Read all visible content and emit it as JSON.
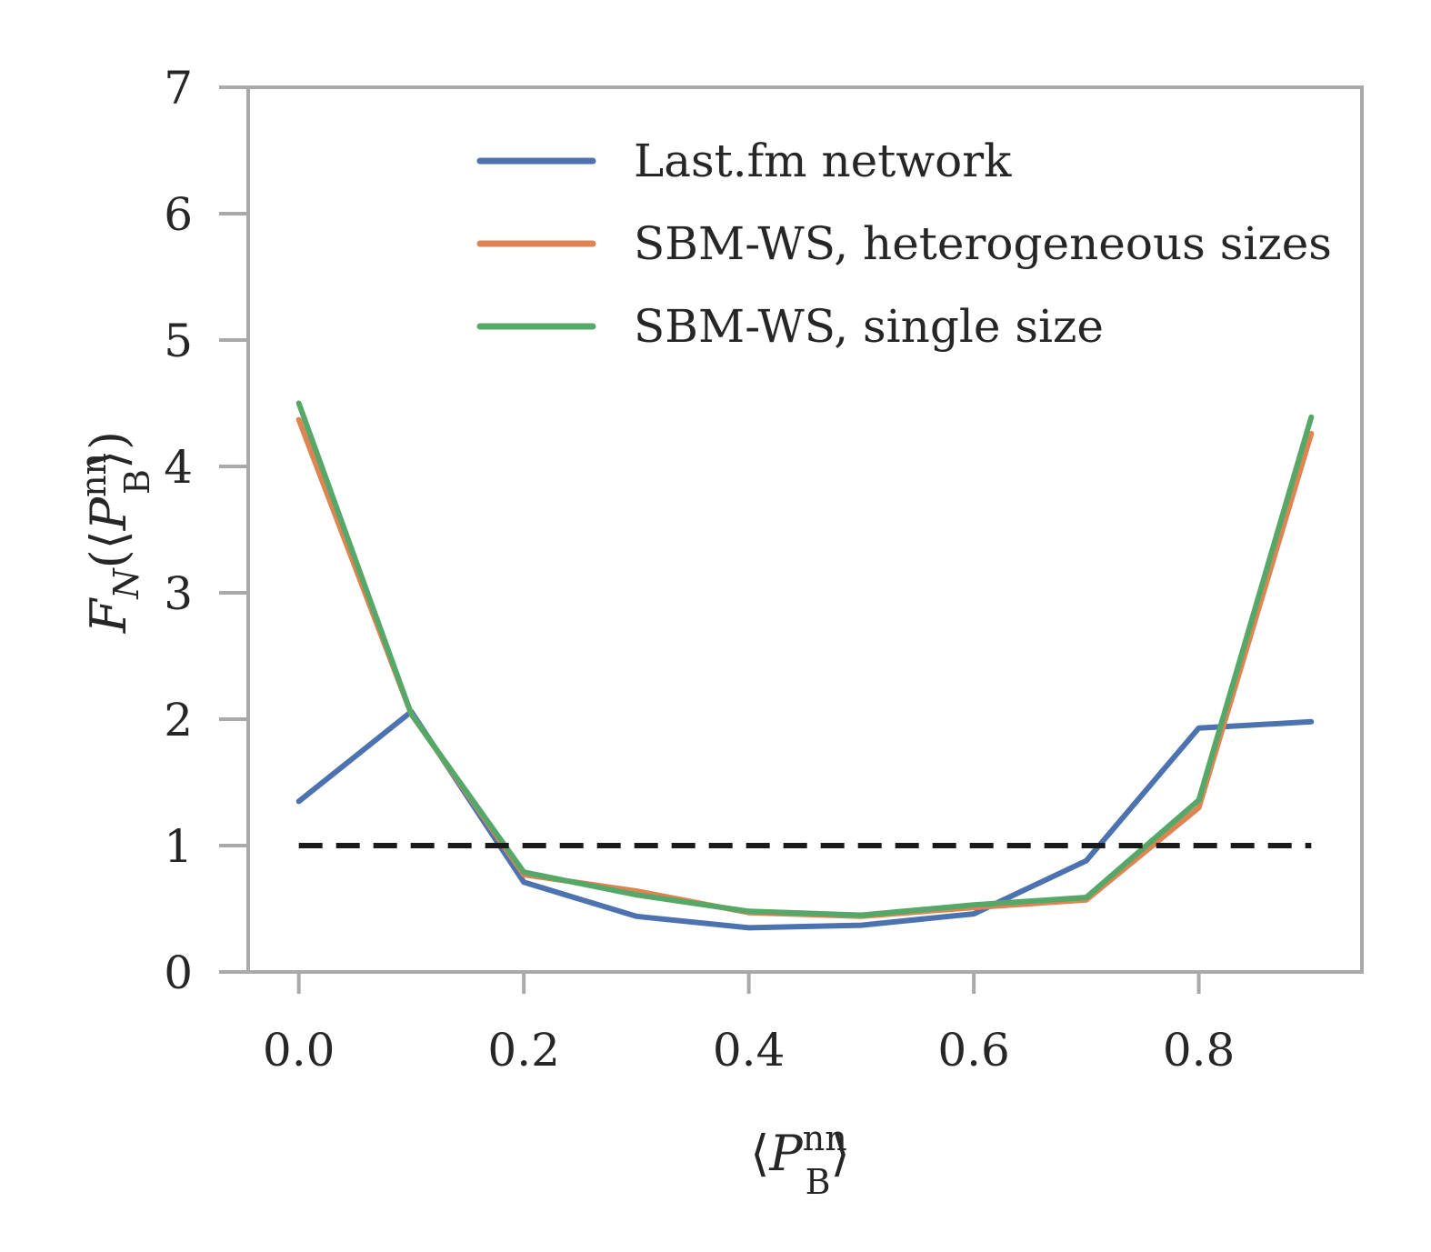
{
  "chart_data": {
    "type": "line",
    "xlabel": "⟨P_B^nn⟩",
    "ylabel": "F_N(⟨P_B^nn⟩)",
    "xlim": [
      -0.045,
      0.945
    ],
    "ylim": [
      0,
      7
    ],
    "xticks": [
      "0.0",
      "0.2",
      "0.4",
      "0.6",
      "0.8"
    ],
    "xtick_values": [
      0.0,
      0.2,
      0.4,
      0.6,
      0.8
    ],
    "yticks": [
      "0",
      "1",
      "2",
      "3",
      "4",
      "5",
      "6",
      "7"
    ],
    "ytick_values": [
      0,
      1,
      2,
      3,
      4,
      5,
      6,
      7
    ],
    "grid": false,
    "legend_position": "top-center",
    "x": [
      0.0,
      0.1,
      0.2,
      0.3,
      0.4,
      0.5,
      0.6,
      0.7,
      0.8,
      0.9
    ],
    "series": [
      {
        "name": "Last.fm network",
        "color": "#4c72b0",
        "values": [
          1.35,
          2.06,
          0.71,
          0.44,
          0.35,
          0.37,
          0.46,
          0.88,
          1.93,
          1.98
        ]
      },
      {
        "name": "SBM-WS, heterogeneous sizes",
        "color": "#dd8452",
        "values": [
          4.37,
          2.04,
          0.77,
          0.64,
          0.47,
          0.44,
          0.51,
          0.57,
          1.3,
          4.26
        ]
      },
      {
        "name": "SBM-WS, single size",
        "color": "#55a868",
        "values": [
          4.5,
          2.04,
          0.79,
          0.61,
          0.48,
          0.45,
          0.53,
          0.59,
          1.36,
          4.39
        ]
      }
    ],
    "reference_line": {
      "y": 1,
      "color": "#1a1a1a",
      "style": "dashed"
    }
  }
}
